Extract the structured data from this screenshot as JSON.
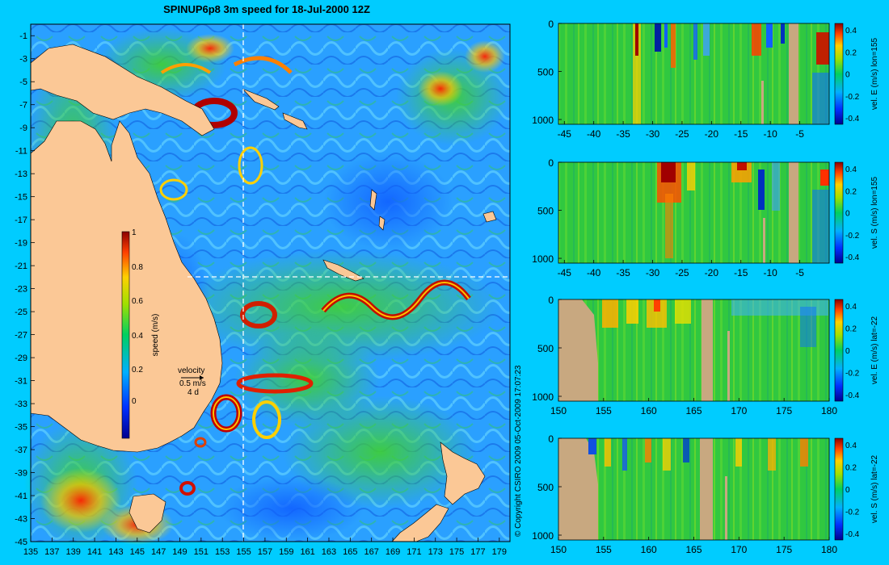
{
  "title": "SPINUP6p8 3m speed for 18-Jul-2000 12Z",
  "copyright": "© Copyright CSIRO 2009   05-Oct-2009 17:07:23",
  "colors": {
    "background": "#00ccff",
    "land": "#fbc896",
    "section_land": "#c8a880"
  },
  "chart_data": [
    {
      "type": "heatmap",
      "title": "SPINUP6p8 3m speed for 18-Jul-2000 12Z",
      "x_ticks": [
        "135",
        "137",
        "139",
        "141",
        "143",
        "145",
        "147",
        "149",
        "151",
        "153",
        "155",
        "157",
        "159",
        "161",
        "163",
        "165",
        "167",
        "169",
        "171",
        "173",
        "175",
        "177",
        "179"
      ],
      "y_ticks": [
        "-1",
        "-3",
        "-5",
        "-7",
        "-9",
        "-11",
        "-13",
        "-15",
        "-17",
        "-19",
        "-21",
        "-23",
        "-25",
        "-27",
        "-29",
        "-31",
        "-33",
        "-35",
        "-37",
        "-39",
        "-41",
        "-43",
        "-45"
      ],
      "xlim": [
        135,
        180
      ],
      "ylim": [
        -45,
        0
      ],
      "section_lon": 155,
      "section_lat": -22,
      "colorbar": {
        "label": "speed (m/s)",
        "ticks": [
          "1",
          "0.8",
          "0.6",
          "0.4",
          "0.2",
          "0"
        ],
        "range": [
          -0.2,
          1
        ]
      },
      "legend": {
        "title": "velocity",
        "scale": "0.5 m/s",
        "period": "4 d"
      }
    },
    {
      "type": "heatmap",
      "x_ticks": [
        "-45",
        "-40",
        "-35",
        "-30",
        "-25",
        "-20",
        "-15",
        "-10",
        "-5"
      ],
      "xlim": [
        -46,
        0
      ],
      "y_ticks": [
        "0",
        "500",
        "1000"
      ],
      "ylim": [
        1050,
        0
      ],
      "colorbar_ticks": [
        "0.4",
        "0.2",
        "0",
        "-0.2",
        "-0.4"
      ],
      "colorbar_label": "vel. E (m/s) lon=155"
    },
    {
      "type": "heatmap",
      "x_ticks": [
        "-45",
        "-40",
        "-35",
        "-30",
        "-25",
        "-20",
        "-15",
        "-10",
        "-5"
      ],
      "xlim": [
        -46,
        0
      ],
      "y_ticks": [
        "0",
        "500",
        "1000"
      ],
      "ylim": [
        1050,
        0
      ],
      "colorbar_ticks": [
        "0.4",
        "0.2",
        "0",
        "-0.2",
        "-0.4"
      ],
      "colorbar_label": "vel. S (m/s) lon=155"
    },
    {
      "type": "heatmap",
      "x_ticks": [
        "150",
        "155",
        "160",
        "165",
        "170",
        "175",
        "180"
      ],
      "xlim": [
        150,
        180
      ],
      "y_ticks": [
        "0",
        "500",
        "1000"
      ],
      "ylim": [
        1050,
        0
      ],
      "colorbar_ticks": [
        "0.4",
        "0.2",
        "0",
        "-0.2",
        "-0.4"
      ],
      "colorbar_label": "vel. E (m/s) lat=-22"
    },
    {
      "type": "heatmap",
      "x_ticks": [
        "150",
        "155",
        "160",
        "165",
        "170",
        "175",
        "180"
      ],
      "xlim": [
        150,
        180
      ],
      "y_ticks": [
        "0",
        "500",
        "1000"
      ],
      "ylim": [
        1050,
        0
      ],
      "colorbar_ticks": [
        "0.4",
        "0.2",
        "0",
        "-0.2",
        "-0.4"
      ],
      "colorbar_label": "vel. S (m/s) lat=-22"
    }
  ]
}
